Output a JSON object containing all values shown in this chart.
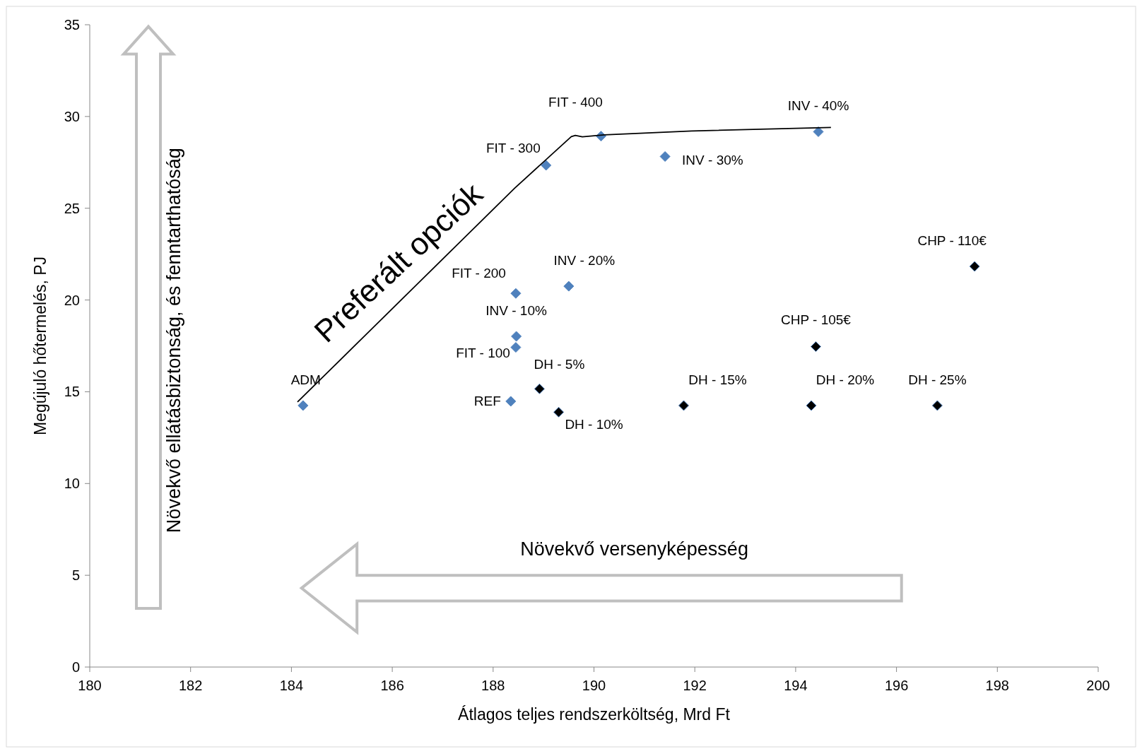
{
  "chart_data": {
    "type": "scatter",
    "xlabel": "Átlagos teljes rendszerköltség, Mrd Ft",
    "ylabel": "Megújuló hőtermelés, PJ",
    "xlim": [
      180,
      200
    ],
    "xticks": [
      180,
      182,
      184,
      186,
      188,
      190,
      192,
      194,
      196,
      198,
      200
    ],
    "ylim": [
      0,
      35
    ],
    "yticks": [
      0,
      5,
      10,
      15,
      20,
      25,
      30,
      35
    ],
    "grid": false,
    "marker": "diamond",
    "series": [
      {
        "color": "#4f81bd",
        "x": [
          184.23,
          188.35,
          188.45,
          188.46,
          188.45,
          189.5,
          189.05,
          190.14,
          191.41,
          194.45
        ],
        "values": [
          14.25,
          14.48,
          17.42,
          18.02,
          20.36,
          20.75,
          27.34,
          28.93,
          27.82,
          29.17
        ]
      },
      {
        "color": "#000000",
        "x": [
          188.92,
          189.3,
          191.78,
          194.31,
          196.81,
          194.4,
          197.55
        ],
        "values": [
          15.16,
          13.89,
          14.25,
          14.25,
          14.25,
          17.46,
          21.83
        ]
      },
      {
        "type": "line",
        "color": "#000000",
        "marker": "none",
        "x": [
          184.12,
          188.43,
          189.55,
          189.63,
          189.77,
          190.2,
          191.94,
          194.7
        ],
        "values": [
          14.44,
          26.1,
          28.9,
          28.97,
          28.89,
          29.0,
          29.21,
          29.4
        ]
      }
    ],
    "annotations": [
      "Preferált opciók",
      "Növekvő ellátásbiztonság, és fenntarthatóság",
      "Növekvő versenyképesség",
      {
        "text": "ADM",
        "x": 184.23,
        "y": 14.25
      },
      {
        "text": "REF",
        "x": 188.35,
        "y": 14.48
      },
      {
        "text": "FIT - 100",
        "x": 188.45,
        "y": 17.42
      },
      {
        "text": "INV - 10%",
        "x": 188.46,
        "y": 18.02
      },
      {
        "text": "FIT - 200",
        "x": 188.45,
        "y": 20.36
      },
      {
        "text": "INV - 20%",
        "x": 189.5,
        "y": 20.75
      },
      {
        "text": "FIT - 300",
        "x": 189.05,
        "y": 27.34
      },
      {
        "text": "FIT - 400",
        "x": 190.14,
        "y": 28.93
      },
      {
        "text": "INV - 30%",
        "x": 191.41,
        "y": 27.82
      },
      {
        "text": "INV - 40%",
        "x": 194.45,
        "y": 29.17
      },
      {
        "text": "DH - 5%",
        "x": 188.92,
        "y": 15.16
      },
      {
        "text": "DH - 10%",
        "x": 189.3,
        "y": 13.89
      },
      {
        "text": "DH - 15%",
        "x": 191.78,
        "y": 14.25
      },
      {
        "text": "DH - 20%",
        "x": 194.31,
        "y": 14.25
      },
      {
        "text": "DH - 25%",
        "x": 196.81,
        "y": 14.25
      },
      {
        "text": "CHP - 105€",
        "x": 194.4,
        "y": 17.46
      },
      {
        "text": "CHP - 110€",
        "x": 197.55,
        "y": 21.83
      }
    ]
  }
}
